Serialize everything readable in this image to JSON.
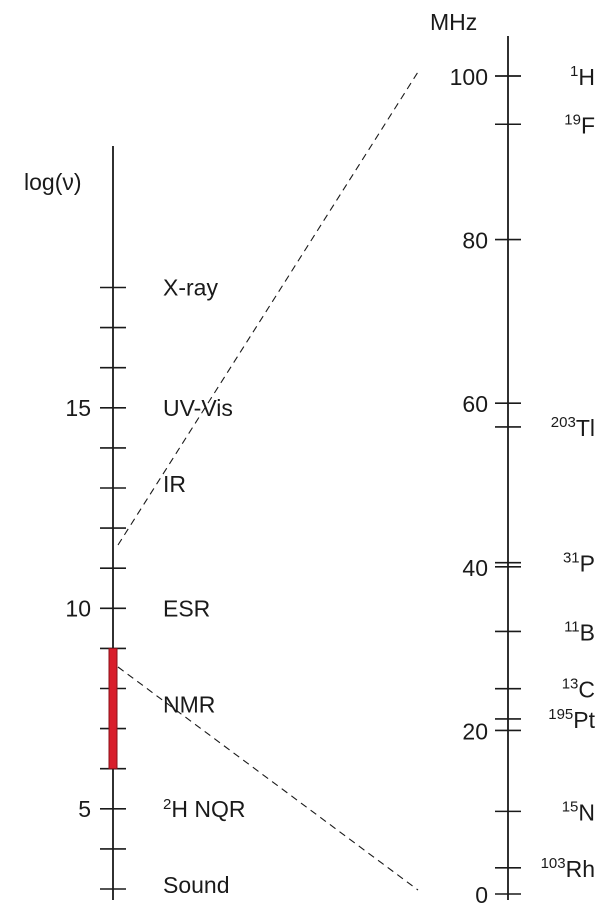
{
  "left_scale": {
    "label": "log(ν)",
    "range": [
      3,
      18
    ],
    "major_ticks": [
      {
        "value": 5,
        "label": "5"
      },
      {
        "value": 10,
        "label": "10"
      },
      {
        "value": 15,
        "label": "15"
      }
    ],
    "nmr_band": {
      "from": 6,
      "to": 9,
      "color": "#d81e2b"
    },
    "regions": [
      {
        "name": "X-ray",
        "position": 18
      },
      {
        "name": "UV-Vis",
        "position": 15
      },
      {
        "name": "IR",
        "position": 13.1
      },
      {
        "name": "ESR",
        "position": 10
      },
      {
        "name": "NMR",
        "position": 7.6
      },
      {
        "name": "NQR",
        "sup": "2",
        "prefix": "H",
        "position": 5
      },
      {
        "name": "Sound",
        "position": 3.1
      }
    ]
  },
  "right_scale": {
    "unit": "MHz",
    "range": [
      0,
      100
    ],
    "major_ticks": [
      {
        "value": 0,
        "label": "0"
      },
      {
        "value": 20,
        "label": "20"
      },
      {
        "value": 40,
        "label": "40"
      },
      {
        "value": 60,
        "label": "60"
      },
      {
        "value": 80,
        "label": "80"
      },
      {
        "value": 100,
        "label": "100"
      }
    ],
    "nuclei": [
      {
        "mass": "1",
        "symbol": "H",
        "freq": 100
      },
      {
        "mass": "19",
        "symbol": "F",
        "freq": 94.1
      },
      {
        "mass": "203",
        "symbol": "Tl",
        "freq": 57.1
      },
      {
        "mass": "31",
        "symbol": "P",
        "freq": 40.5
      },
      {
        "mass": "11",
        "symbol": "B",
        "freq": 32.1
      },
      {
        "mass": "13",
        "symbol": "C",
        "freq": 25.1
      },
      {
        "mass": "195",
        "symbol": "Pt",
        "freq": 21.4
      },
      {
        "mass": "15",
        "symbol": "N",
        "freq": 10.1
      },
      {
        "mass": "103",
        "symbol": "Rh",
        "freq": 3.2
      }
    ]
  }
}
